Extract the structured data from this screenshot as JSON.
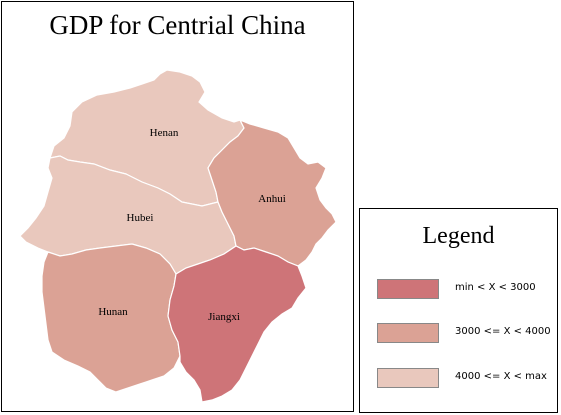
{
  "title": "GDP for Centrial China",
  "colors": {
    "class_low": "#ce7478",
    "class_mid": "#dba295",
    "class_high": "#e9c8bd",
    "border": "#ffffff"
  },
  "regions": [
    {
      "name": "Henan",
      "label": "Henan",
      "class": "4000 <= X < max"
    },
    {
      "name": "Hubei",
      "label": "Hubei",
      "class": "4000 <= X < max"
    },
    {
      "name": "Anhui",
      "label": "Anhui",
      "class": "3000 <= X < 4000"
    },
    {
      "name": "Hunan",
      "label": "Hunan",
      "class": "3000 <= X < 4000"
    },
    {
      "name": "Jiangxi",
      "label": "Jiangxi",
      "class": "min < X < 3000"
    }
  ],
  "legend": {
    "title": "Legend",
    "items": [
      {
        "label": "min < X < 3000",
        "color": "#ce7478"
      },
      {
        "label": "3000 <= X < 4000",
        "color": "#dba295"
      },
      {
        "label": "4000 <= X < max",
        "color": "#e9c8bd"
      }
    ]
  }
}
